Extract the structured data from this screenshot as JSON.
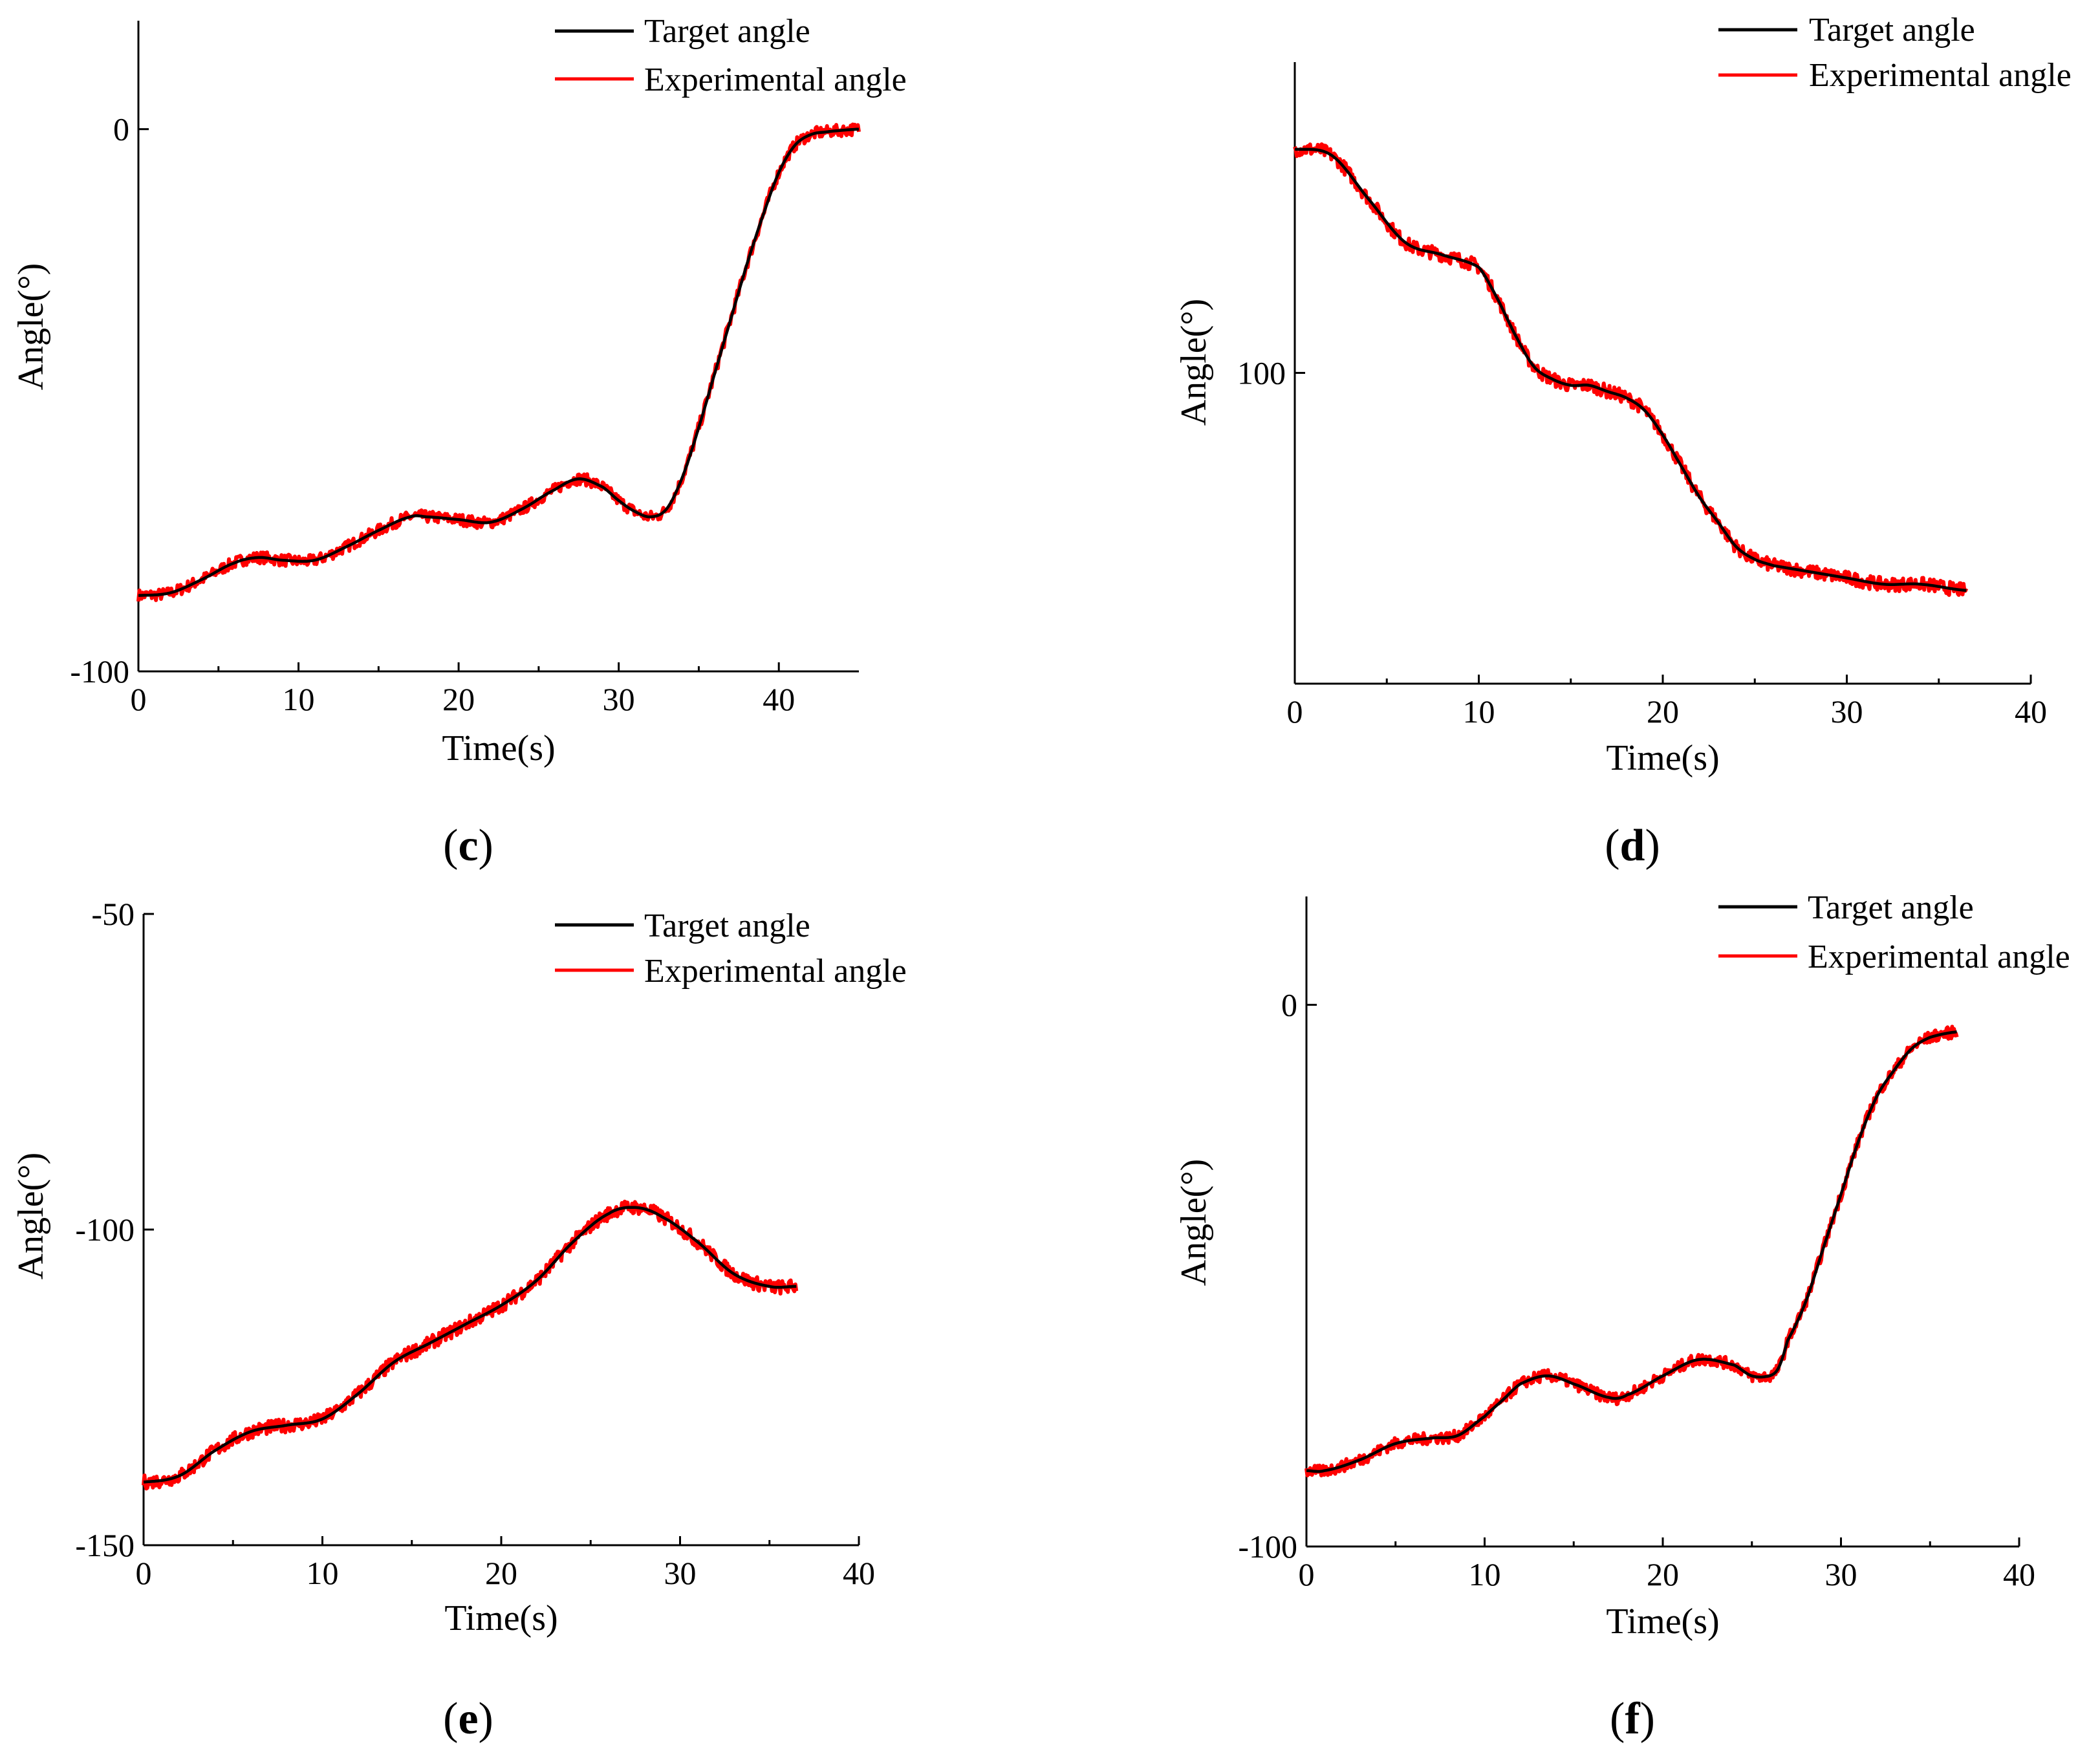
{
  "chart_data": [
    {
      "type": "line",
      "panel_label": "c",
      "xlabel": "Time(s)",
      "ylabel": "Angle(°)",
      "xlim": [
        0,
        45
      ],
      "ylim": [
        -100,
        20
      ],
      "xticks": [
        0,
        10,
        20,
        30,
        40
      ],
      "yticks": [
        -100,
        0
      ],
      "legend": "top-right",
      "series": [
        {
          "name": "Target angle",
          "color": "#000000",
          "x": [
            0,
            2,
            4,
            6,
            7.5,
            9,
            11,
            13,
            15,
            17,
            18,
            20,
            22,
            24,
            26,
            27.5,
            29,
            30,
            31,
            32,
            33,
            34,
            35,
            36,
            37,
            38,
            39,
            40,
            41,
            42,
            43,
            44,
            45
          ],
          "y": [
            -86,
            -85.5,
            -83,
            -80,
            -79,
            -79.5,
            -79.5,
            -77,
            -74,
            -71.5,
            -71.5,
            -72,
            -72.5,
            -70,
            -66.5,
            -64.5,
            -66,
            -68.5,
            -70.5,
            -71.5,
            -70,
            -64,
            -55,
            -45,
            -35,
            -25,
            -16,
            -8,
            -3,
            -1,
            -0.5,
            -0.2,
            0
          ]
        },
        {
          "name": "Experimental angle",
          "color": "#ff0000",
          "x": [
            0,
            2,
            4,
            6,
            7.5,
            9,
            11,
            13,
            15,
            17,
            18,
            20,
            22,
            24,
            26,
            27.5,
            29,
            30,
            31,
            32,
            33,
            34,
            35,
            36,
            37,
            38,
            39,
            40,
            41,
            42,
            43,
            44,
            45
          ],
          "y": [
            -86,
            -85.5,
            -83,
            -80,
            -79,
            -79.5,
            -79.5,
            -77,
            -74,
            -71.5,
            -71.5,
            -72,
            -72.5,
            -70,
            -66.5,
            -64.5,
            -66,
            -68.5,
            -70.5,
            -71.5,
            -70,
            -64,
            -55,
            -45,
            -35,
            -25,
            -16,
            -8,
            -3,
            -1,
            -0.5,
            -0.2,
            0
          ]
        }
      ]
    },
    {
      "type": "line",
      "panel_label": "d",
      "xlabel": "Time(s)",
      "ylabel": "Angle(°)",
      "xlim": [
        0,
        40
      ],
      "ylim": [
        50,
        150
      ],
      "xticks": [
        0,
        10,
        20,
        30,
        40
      ],
      "yticks": [
        100
      ],
      "legend": "top-right",
      "series": [
        {
          "name": "Target angle",
          "color": "#000000",
          "x": [
            0,
            2,
            4,
            6,
            8,
            10,
            11,
            12,
            13,
            14,
            15,
            16,
            17,
            18,
            19,
            20,
            21,
            22,
            23,
            24,
            25,
            26,
            28,
            30,
            32,
            34,
            36.5
          ],
          "y": [
            136,
            135,
            128,
            121,
            119,
            117,
            112,
            106,
            101,
            99,
            98,
            98,
            97,
            96,
            94,
            90,
            85,
            80,
            76,
            72,
            70,
            69,
            68,
            67,
            66,
            66,
            65
          ]
        },
        {
          "name": "Experimental angle",
          "color": "#ff0000",
          "x": [
            0,
            2,
            4,
            6,
            8,
            10,
            11,
            12,
            13,
            14,
            15,
            16,
            17,
            18,
            19,
            20,
            21,
            22,
            23,
            24,
            25,
            26,
            28,
            30,
            32,
            34,
            36.5
          ],
          "y": [
            136,
            135,
            128,
            121,
            119,
            117,
            112,
            106,
            101,
            99,
            98,
            98,
            97,
            96,
            94,
            90,
            85,
            80,
            76,
            72,
            70,
            69,
            68,
            67,
            66,
            66,
            65
          ]
        }
      ]
    },
    {
      "type": "line",
      "panel_label": "e",
      "xlabel": "Time(s)",
      "ylabel": "Angle(°)",
      "xlim": [
        0,
        40
      ],
      "ylim": [
        -150,
        -50
      ],
      "xticks": [
        0,
        10,
        20,
        30,
        40
      ],
      "yticks": [
        -150,
        -100,
        -50
      ],
      "legend": "top-right",
      "series": [
        {
          "name": "Target angle",
          "color": "#000000",
          "x": [
            0,
            2,
            4,
            6,
            8,
            10,
            12,
            14,
            16,
            18,
            20,
            22,
            24,
            26,
            27.5,
            29,
            31,
            33,
            35,
            36.5
          ],
          "y": [
            -140,
            -139,
            -135,
            -132,
            -131,
            -130,
            -126,
            -121,
            -118,
            -115,
            -112,
            -108,
            -102,
            -97.5,
            -96.5,
            -98,
            -102,
            -107,
            -109,
            -109
          ]
        },
        {
          "name": "Experimental angle",
          "color": "#ff0000",
          "x": [
            0,
            2,
            4,
            6,
            8,
            10,
            12,
            14,
            16,
            18,
            20,
            22,
            24,
            26,
            27.5,
            29,
            31,
            33,
            35,
            36.5
          ],
          "y": [
            -140,
            -139,
            -135,
            -132,
            -131,
            -130,
            -126,
            -121,
            -118,
            -115,
            -112,
            -108,
            -102,
            -97.5,
            -96.5,
            -98,
            -102,
            -107,
            -109,
            -109
          ]
        }
      ]
    },
    {
      "type": "line",
      "panel_label": "f",
      "xlabel": "Time(s)",
      "ylabel": "Angle(°)",
      "xlim": [
        0,
        40
      ],
      "ylim": [
        -100,
        20
      ],
      "xticks": [
        0,
        10,
        20,
        30,
        40
      ],
      "yticks": [
        -100,
        0
      ],
      "legend": "top-right",
      "series": [
        {
          "name": "Target angle",
          "color": "#000000",
          "x": [
            0,
            1,
            3,
            5,
            7,
            8.5,
            10,
            11,
            12,
            13.5,
            15,
            17,
            18,
            20,
            22,
            24,
            25,
            26,
            26.5,
            27,
            28,
            29,
            30,
            31,
            32,
            33,
            34,
            35,
            36.5
          ],
          "y": [
            -86,
            -86,
            -84,
            -81,
            -80,
            -79.5,
            -76,
            -73,
            -70,
            -68.5,
            -70,
            -72.5,
            -72,
            -68.5,
            -65.5,
            -66.5,
            -68.5,
            -68.5,
            -67,
            -62,
            -55,
            -45,
            -35,
            -25,
            -17,
            -12,
            -8,
            -6,
            -5
          ]
        },
        {
          "name": "Experimental angle",
          "color": "#ff0000",
          "x": [
            0,
            1,
            3,
            5,
            7,
            8.5,
            10,
            11,
            12,
            13.5,
            15,
            17,
            18,
            20,
            22,
            24,
            25,
            26,
            26.5,
            27,
            28,
            29,
            30,
            31,
            32,
            33,
            34,
            35,
            36.5
          ],
          "y": [
            -86,
            -86,
            -84,
            -81,
            -80,
            -79.5,
            -76,
            -73,
            -70,
            -68.5,
            -70,
            -72.5,
            -72,
            -68.5,
            -65.5,
            -66.5,
            -68.5,
            -68.5,
            -67,
            -62,
            -55,
            -45,
            -35,
            -25,
            -17,
            -12,
            -8,
            -6,
            -5
          ]
        }
      ]
    }
  ]
}
